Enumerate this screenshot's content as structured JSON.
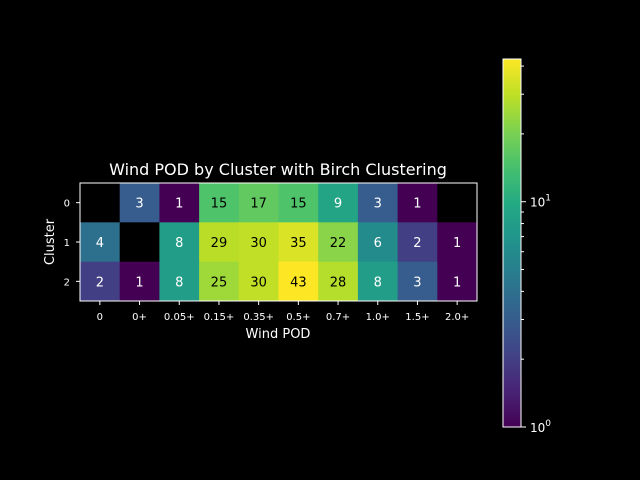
{
  "chart_data": {
    "type": "heatmap",
    "title": "Wind POD by Cluster with Birch Clustering",
    "xlabel": "Wind POD",
    "ylabel": "Cluster",
    "x_tick_labels": [
      "0",
      "0+",
      "0.05+",
      "0.15+",
      "0.35+",
      "0.5+",
      "0.7+",
      "1.0+",
      "1.5+",
      "2.0+"
    ],
    "y_tick_labels": [
      "0",
      "1",
      "2"
    ],
    "rows": [
      [
        null,
        3,
        1,
        15,
        17,
        15,
        9,
        3,
        1,
        null
      ],
      [
        4,
        null,
        8,
        29,
        30,
        35,
        22,
        6,
        2,
        1
      ],
      [
        2,
        1,
        8,
        25,
        30,
        43,
        28,
        8,
        3,
        1
      ]
    ],
    "color_scale": "log",
    "colormap": "viridis",
    "colorbar": {
      "range": [
        1,
        43
      ],
      "tick_labels": [
        {
          "value": 1,
          "base": "10",
          "exp": "0"
        },
        {
          "value": 10,
          "base": "10",
          "exp": "1"
        }
      ]
    },
    "missing_color": "#000000"
  }
}
